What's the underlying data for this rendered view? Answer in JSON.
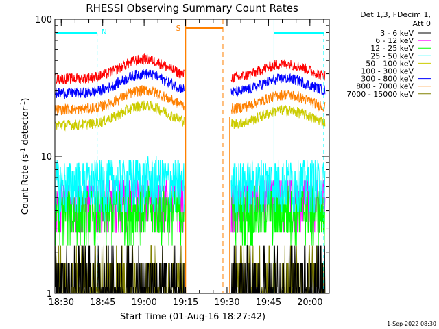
{
  "chart_data": {
    "type": "line",
    "title": "RHESSI Observing Summary Count Rates",
    "xlabel": "Start Time (01-Aug-16 18:27:42)",
    "ylabel": "Count Rate (s",
    "ylabel_sup1": "-1",
    "ylabel_mid": " detector",
    "ylabel_sup2": "-1",
    "ylabel_end": ")",
    "yscale": "log",
    "ylim": [
      1,
      100
    ],
    "xlim": [
      "18:27:42",
      "20:07:00"
    ],
    "x_ticks": [
      "18:30",
      "18:45",
      "19:00",
      "19:15",
      "19:30",
      "19:45",
      "20:00"
    ],
    "y_ticks": [
      "1",
      "10",
      "100"
    ],
    "legend_header": [
      "Det 1,3, FDecim 1,",
      "Att 0"
    ],
    "timestamp": "1-Sep-2022 08:30",
    "gaps": [
      [
        "19:15",
        "19:31"
      ]
    ],
    "night_markers": [
      {
        "label": "N",
        "start": "18:27:42",
        "end": "18:43",
        "color": "#00ffff"
      },
      {
        "label": "S",
        "start": "19:15",
        "end": "19:31",
        "color": "#ff8000"
      }
    ],
    "series": [
      {
        "name": "3 - 6 keV",
        "color": "#000000",
        "level": 1.6
      },
      {
        "name": "6 - 12 keV",
        "color": "#ff00ff",
        "level": 4.2
      },
      {
        "name": "12 - 25 keV",
        "color": "#00ff00",
        "level": 3.6
      },
      {
        "name": "25 - 50 keV",
        "color": "#00ffff",
        "level": 5.8
      },
      {
        "name": "50 - 100 keV",
        "color": "#cccc00",
        "level": 17
      },
      {
        "name": "100 - 300 keV",
        "color": "#ff0000",
        "level": 37
      },
      {
        "name": "300 - 800 keV",
        "color": "#0000ff",
        "level": 29
      },
      {
        "name": "800 - 7000 keV",
        "color": "#ff8000",
        "level": 22
      },
      {
        "name": "7000 - 15000 keV",
        "color": "#808000",
        "level": 1.5
      }
    ]
  }
}
